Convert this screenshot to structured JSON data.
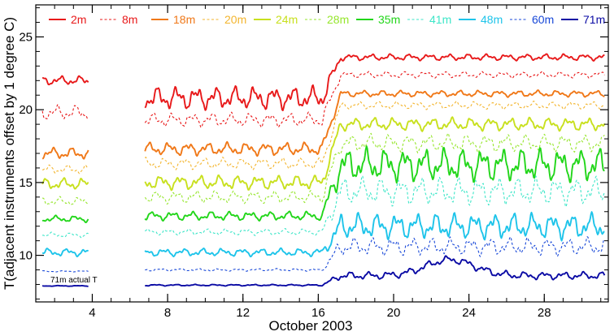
{
  "chart_data": {
    "type": "line",
    "title": "",
    "xlabel": "October 2003",
    "ylabel": "T(adjacent instruments offset by 1 degree C)",
    "xlim": [
      1,
      31.4
    ],
    "ylim": [
      6.8,
      27.2
    ],
    "xticks": [
      4,
      8,
      12,
      16,
      20,
      24,
      28
    ],
    "yticks": [
      10,
      15,
      20,
      25
    ],
    "grid": false,
    "legend_position": "top",
    "gap": [
      3.8,
      6.8
    ],
    "annotation": "71m actual T",
    "series": [
      {
        "name": "2m",
        "color": "#e8191a",
        "dash": false,
        "base1": 22.0,
        "base2": 20.8,
        "base3": 23.6,
        "osc1": 0.35,
        "osc2": 0.9,
        "osc3": 0.25
      },
      {
        "name": "8m",
        "color": "#e8191a",
        "dash": true,
        "base1": 19.8,
        "base2": 19.3,
        "base3": 22.4,
        "osc1": 0.6,
        "osc2": 0.55,
        "osc3": 0.25
      },
      {
        "name": "18m",
        "color": "#f07818",
        "dash": false,
        "base1": 17.0,
        "base2": 17.3,
        "base3": 21.1,
        "osc1": 0.45,
        "osc2": 0.5,
        "osc3": 0.25
      },
      {
        "name": "20m",
        "color": "#f3b52e",
        "dash": true,
        "base1": 15.9,
        "base2": 16.3,
        "base3": 20.3,
        "osc1": 0.35,
        "osc2": 0.45,
        "osc3": 0.3
      },
      {
        "name": "24m",
        "color": "#c8e01e",
        "dash": false,
        "base1": 14.9,
        "base2": 15.0,
        "base3": 19.0,
        "osc1": 0.45,
        "osc2": 0.55,
        "osc3": 0.5
      },
      {
        "name": "28m",
        "color": "#96e62c",
        "dash": true,
        "base1": 13.7,
        "base2": 14.0,
        "base3": 17.7,
        "osc1": 0.35,
        "osc2": 0.5,
        "osc3": 0.7
      },
      {
        "name": "35m",
        "color": "#22d61a",
        "dash": false,
        "base1": 12.5,
        "base2": 12.7,
        "base3": 16.2,
        "osc1": 0.25,
        "osc2": 0.35,
        "osc3": 1.3
      },
      {
        "name": "41m",
        "color": "#3de6c8",
        "dash": true,
        "base1": 11.4,
        "base2": 11.6,
        "base3": 14.4,
        "osc1": 0.2,
        "osc2": 0.25,
        "osc3": 1.1
      },
      {
        "name": "48m",
        "color": "#1ec4ea",
        "dash": false,
        "base1": 10.2,
        "base2": 10.2,
        "base3": 12.0,
        "osc1": 0.3,
        "osc2": 0.3,
        "osc3": 1.0
      },
      {
        "name": "60m",
        "color": "#1848d8",
        "dash": true,
        "base1": 8.9,
        "base2": 9.0,
        "base3": 10.6,
        "osc1": 0.05,
        "osc2": 0.1,
        "osc3": 0.7
      },
      {
        "name": "71m",
        "color": "#0a0aa4",
        "dash": false,
        "base1": 7.9,
        "base2": 7.95,
        "base3": 8.6,
        "osc1": 0.03,
        "osc2": 0.06,
        "osc3": 0.3
      }
    ]
  }
}
